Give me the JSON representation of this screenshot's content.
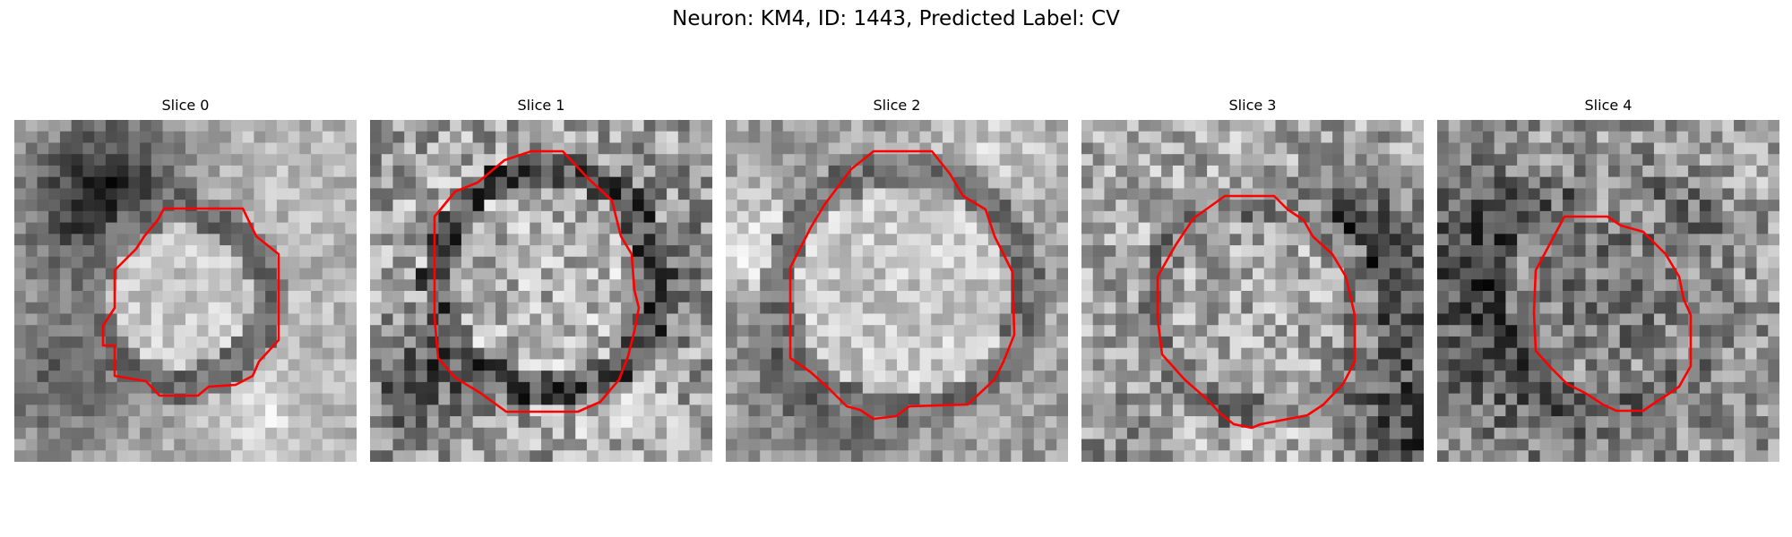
{
  "figure": {
    "title": "Neuron: KM4, ID: 1443, Predicted Label: CV",
    "colormap": "gray",
    "contour_color": "#ff0000",
    "slices": [
      {
        "title": "Slice 0"
      },
      {
        "title": "Slice 1"
      },
      {
        "title": "Slice 2"
      },
      {
        "title": "Slice 3"
      },
      {
        "title": "Slice 4"
      }
    ]
  }
}
